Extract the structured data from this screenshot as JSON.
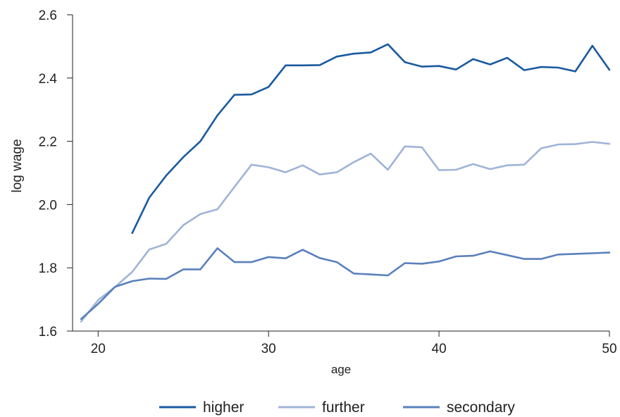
{
  "chart_data": {
    "type": "line",
    "title": "",
    "xlabel": "age",
    "ylabel": "log wage",
    "xlim": [
      18.5,
      50
    ],
    "ylim": [
      1.6,
      2.6
    ],
    "xticks": [
      20,
      30,
      40,
      50
    ],
    "yticks": [
      1.6,
      1.8,
      2.0,
      2.2,
      2.4,
      2.6
    ],
    "xtick_labels": [
      "20",
      "30",
      "40",
      "50"
    ],
    "ytick_labels": [
      "1.6",
      "1.8",
      "2.0",
      "2.2",
      "2.4",
      "2.6"
    ],
    "grid": false,
    "legend_position": "bottom",
    "series": [
      {
        "name": "higher",
        "color": "#1a5a9e",
        "x": [
          22,
          23,
          24,
          25,
          26,
          27,
          28,
          29,
          30,
          31,
          32,
          33,
          34,
          35,
          36,
          37,
          38,
          39,
          40,
          41,
          42,
          43,
          44,
          45,
          46,
          47,
          48,
          49,
          50
        ],
        "values": [
          1.91,
          2.022,
          2.092,
          2.15,
          2.2,
          2.282,
          2.347,
          2.348,
          2.372,
          2.44,
          2.44,
          2.441,
          2.468,
          2.477,
          2.481,
          2.507,
          2.45,
          2.436,
          2.438,
          2.427,
          2.46,
          2.443,
          2.464,
          2.425,
          2.435,
          2.433,
          2.421,
          2.502,
          2.426
        ]
      },
      {
        "name": "further",
        "color": "#9fb4d8",
        "x": [
          19,
          20,
          21,
          22,
          23,
          24,
          25,
          26,
          27,
          28,
          29,
          30,
          31,
          32,
          33,
          34,
          35,
          36,
          37,
          38,
          39,
          40,
          41,
          42,
          43,
          44,
          45,
          46,
          47,
          48,
          49,
          50
        ],
        "values": [
          1.63,
          1.698,
          1.74,
          1.787,
          1.858,
          1.876,
          1.935,
          1.97,
          1.985,
          2.056,
          2.126,
          2.118,
          2.102,
          2.124,
          2.095,
          2.102,
          2.134,
          2.161,
          2.11,
          2.184,
          2.181,
          2.109,
          2.11,
          2.128,
          2.112,
          2.124,
          2.126,
          2.178,
          2.19,
          2.191,
          2.198,
          2.192
        ]
      },
      {
        "name": "secondary",
        "color": "#5a80bd",
        "x": [
          19,
          20,
          21,
          22,
          23,
          24,
          25,
          26,
          27,
          28,
          29,
          30,
          31,
          32,
          33,
          34,
          35,
          36,
          37,
          38,
          39,
          40,
          41,
          42,
          43,
          44,
          45,
          46,
          47,
          48,
          49,
          50
        ],
        "values": [
          1.638,
          1.686,
          1.74,
          1.758,
          1.766,
          1.765,
          1.795,
          1.795,
          1.862,
          1.818,
          1.818,
          1.834,
          1.83,
          1.857,
          1.831,
          1.818,
          1.782,
          1.779,
          1.776,
          1.815,
          1.813,
          1.82,
          1.836,
          1.838,
          1.852,
          1.84,
          1.828,
          1.828,
          1.842,
          1.844,
          1.846,
          1.848
        ]
      }
    ]
  }
}
